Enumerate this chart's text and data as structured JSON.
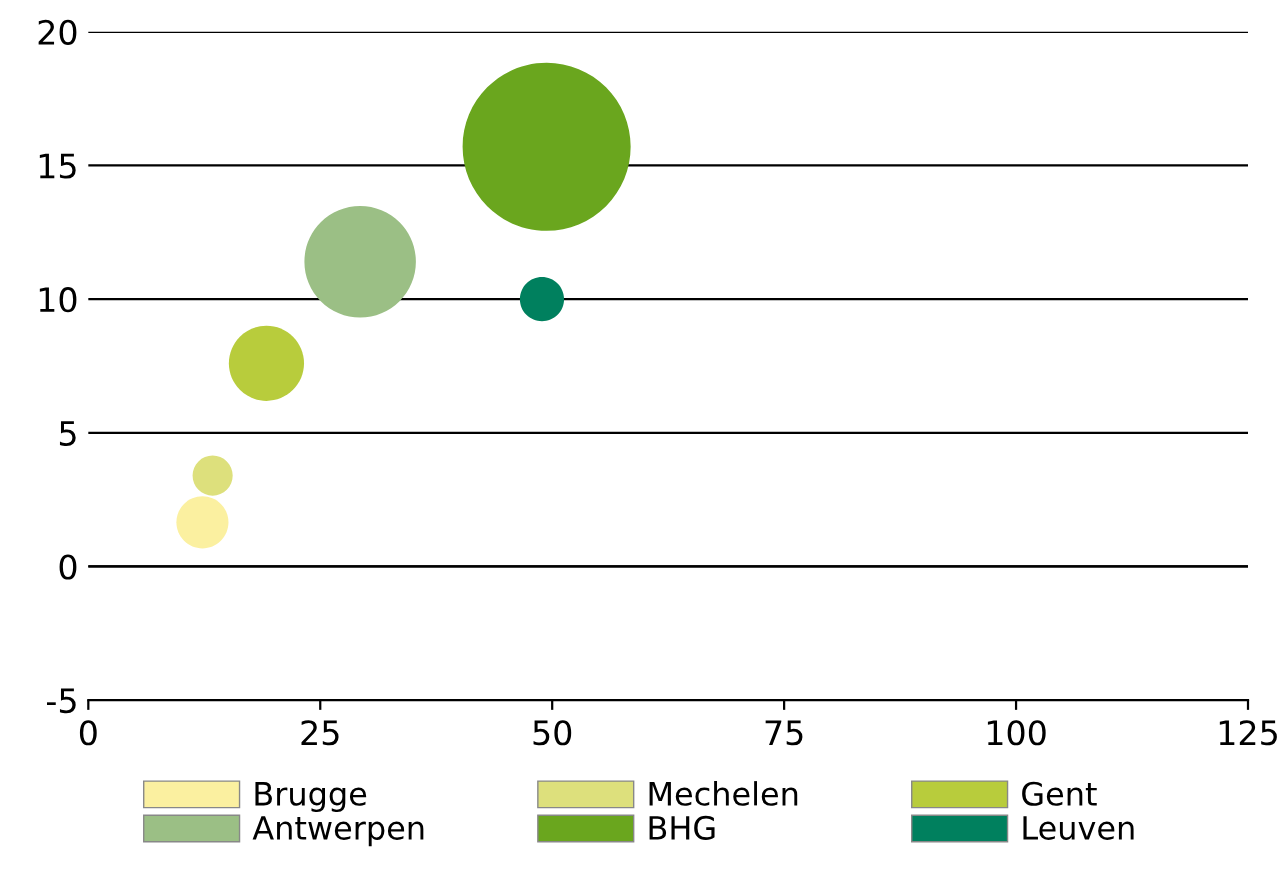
{
  "chart_data": {
    "type": "bubble",
    "xlim": [
      0,
      125
    ],
    "xticks": [
      0,
      25,
      50,
      75,
      100,
      125
    ],
    "ylim": [
      -5,
      20
    ],
    "yticks": [
      -5,
      0,
      5,
      10,
      15,
      20
    ],
    "grid": "y",
    "legend": "bottom",
    "series": [
      {
        "name": "Brugge",
        "color": "#fbf0a0",
        "x": [
          12.3
        ],
        "values": [
          1.65
        ],
        "sizes": [
          0.096
        ]
      },
      {
        "name": "Mechelen",
        "color": "#dde07c",
        "x": [
          13.4
        ],
        "values": [
          3.4
        ],
        "sizes": [
          0.057
        ]
      },
      {
        "name": "Gent",
        "color": "#b8cc3c",
        "x": [
          19.2
        ],
        "values": [
          7.6
        ],
        "sizes": [
          0.2
        ]
      },
      {
        "name": "Antwerpen",
        "color": "#9bbf85",
        "x": [
          29.3
        ],
        "values": [
          11.4
        ],
        "sizes": [
          0.44
        ]
      },
      {
        "name": "BHG",
        "color": "#6aa61e",
        "x": [
          49.4
        ],
        "values": [
          15.7
        ],
        "sizes": [
          1
        ]
      },
      {
        "name": "Leuven",
        "color": "#00805e",
        "x": [
          48.9
        ],
        "values": [
          10.0
        ],
        "sizes": [
          0.069
        ]
      }
    ]
  }
}
